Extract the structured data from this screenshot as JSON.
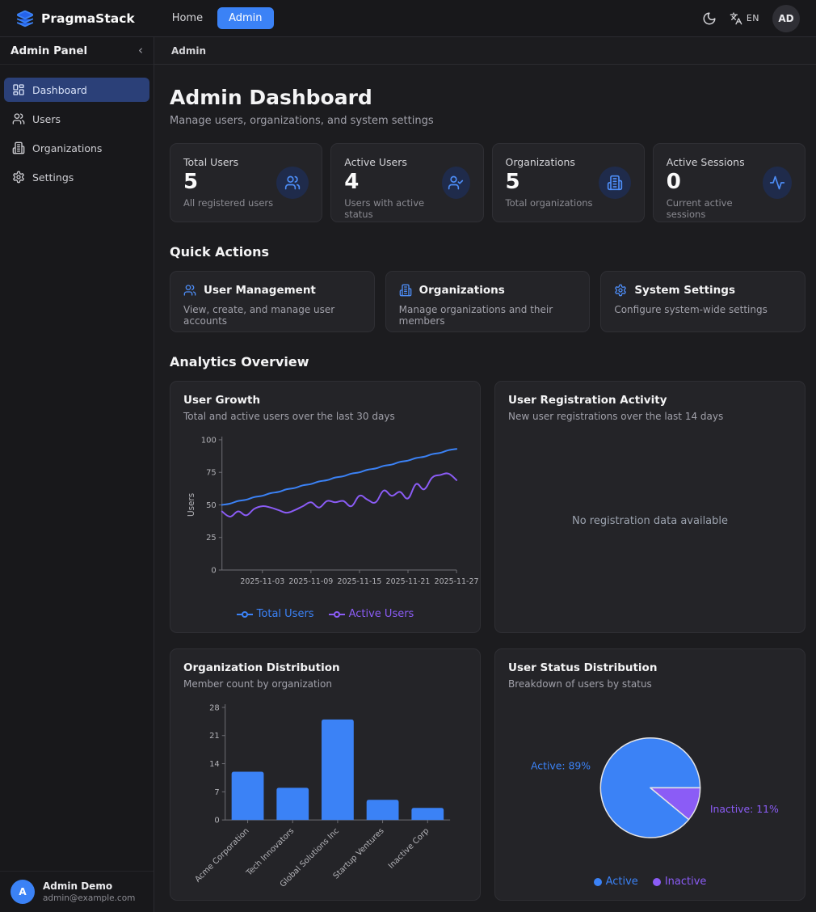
{
  "navbar": {
    "brand": "PragmaStack",
    "links": [
      {
        "label": "Home"
      },
      {
        "label": "Admin"
      }
    ],
    "language": "EN",
    "avatar_initials": "AD"
  },
  "sidebar": {
    "title": "Admin Panel",
    "collapse_icon": "‹",
    "items": [
      {
        "label": "Dashboard",
        "icon": "dashboard-icon",
        "active": true
      },
      {
        "label": "Users",
        "icon": "users-icon",
        "active": false
      },
      {
        "label": "Organizations",
        "icon": "building-icon",
        "active": false
      },
      {
        "label": "Settings",
        "icon": "gear-icon",
        "active": false
      }
    ],
    "footer": {
      "initial": "A",
      "name": "Admin Demo",
      "email": "admin@example.com"
    }
  },
  "breadcrumb": "Admin",
  "header": {
    "title": "Admin Dashboard",
    "subtitle": "Manage users, organizations, and system settings"
  },
  "stats": [
    {
      "label": "Total Users",
      "value": "5",
      "description": "All registered users",
      "icon": "users-icon"
    },
    {
      "label": "Active Users",
      "value": "4",
      "description": "Users with active status",
      "icon": "user-check-icon"
    },
    {
      "label": "Organizations",
      "value": "5",
      "description": "Total organizations",
      "icon": "building-icon"
    },
    {
      "label": "Active Sessions",
      "value": "0",
      "description": "Current active sessions",
      "icon": "activity-icon"
    }
  ],
  "quick_actions": {
    "heading": "Quick Actions",
    "cards": [
      {
        "title": "User Management",
        "description": "View, create, and manage user accounts",
        "icon": "users-icon"
      },
      {
        "title": "Organizations",
        "description": "Manage organizations and their members",
        "icon": "building-icon"
      },
      {
        "title": "System Settings",
        "description": "Configure system-wide settings",
        "icon": "gear-icon"
      }
    ]
  },
  "analytics": {
    "heading": "Analytics Overview"
  },
  "colors": {
    "accent": "#3b82f6",
    "purple": "#8b5cf6"
  },
  "chart_data": [
    {
      "id": "user_growth",
      "type": "line",
      "title": "User Growth",
      "subtitle": "Total and active users over the last 30 days",
      "ylabel": "Users",
      "ylim": [
        0,
        100
      ],
      "yticks": [
        0,
        25,
        50,
        75,
        100
      ],
      "x": [
        "2025-10-29",
        "2025-10-30",
        "2025-10-31",
        "2025-11-01",
        "2025-11-02",
        "2025-11-03",
        "2025-11-04",
        "2025-11-05",
        "2025-11-06",
        "2025-11-07",
        "2025-11-08",
        "2025-11-09",
        "2025-11-10",
        "2025-11-11",
        "2025-11-12",
        "2025-11-13",
        "2025-11-14",
        "2025-11-15",
        "2025-11-16",
        "2025-11-17",
        "2025-11-18",
        "2025-11-19",
        "2025-11-20",
        "2025-11-21",
        "2025-11-22",
        "2025-11-23",
        "2025-11-24",
        "2025-11-25",
        "2025-11-26",
        "2025-11-27"
      ],
      "xticks": [
        "2025-11-03",
        "2025-11-09",
        "2025-11-15",
        "2025-11-21",
        "2025-11-27"
      ],
      "xtick_indices": [
        5,
        11,
        17,
        23,
        29
      ],
      "series": [
        {
          "name": "Total Users",
          "color": "#3b82f6",
          "values": [
            50,
            51,
            53,
            54,
            56,
            57,
            59,
            60,
            62,
            63,
            65,
            66,
            68,
            69,
            71,
            72,
            74,
            75,
            77,
            78,
            80,
            81,
            83,
            84,
            86,
            87,
            89,
            90,
            92,
            93
          ]
        },
        {
          "name": "Active Users",
          "color": "#8b5cf6",
          "values": [
            45,
            41,
            45,
            42,
            47,
            49,
            48,
            46,
            44,
            46,
            49,
            52,
            48,
            53,
            52,
            53,
            49,
            57,
            54,
            52,
            61,
            57,
            60,
            55,
            66,
            62,
            71,
            73,
            74,
            69
          ]
        }
      ],
      "legend_position": "bottom",
      "grid": false
    },
    {
      "id": "registrations",
      "type": "line",
      "title": "User Registration Activity",
      "subtitle": "New user registrations over the last 14 days",
      "empty_message": "No registration data available",
      "series": []
    },
    {
      "id": "org_distribution",
      "type": "bar",
      "title": "Organization Distribution",
      "subtitle": "Member count by organization",
      "categories": [
        "Acme Corporation",
        "Tech Innovators",
        "Global Solutions Inc",
        "Startup Ventures",
        "Inactive Corp"
      ],
      "values": [
        12,
        8,
        25,
        5,
        3
      ],
      "ylim": [
        0,
        28
      ],
      "yticks": [
        0,
        7,
        14,
        21,
        28
      ],
      "bar_color": "#3b82f6",
      "grid": false
    },
    {
      "id": "user_status",
      "type": "pie",
      "title": "User Status Distribution",
      "subtitle": "Breakdown of users by status",
      "slices": [
        {
          "label": "Active",
          "pct": 89,
          "color": "#3b82f6",
          "callout": "Active: 89%"
        },
        {
          "label": "Inactive",
          "pct": 11,
          "color": "#8b5cf6",
          "callout": "Inactive: 11%"
        }
      ],
      "legend_position": "bottom"
    }
  ]
}
